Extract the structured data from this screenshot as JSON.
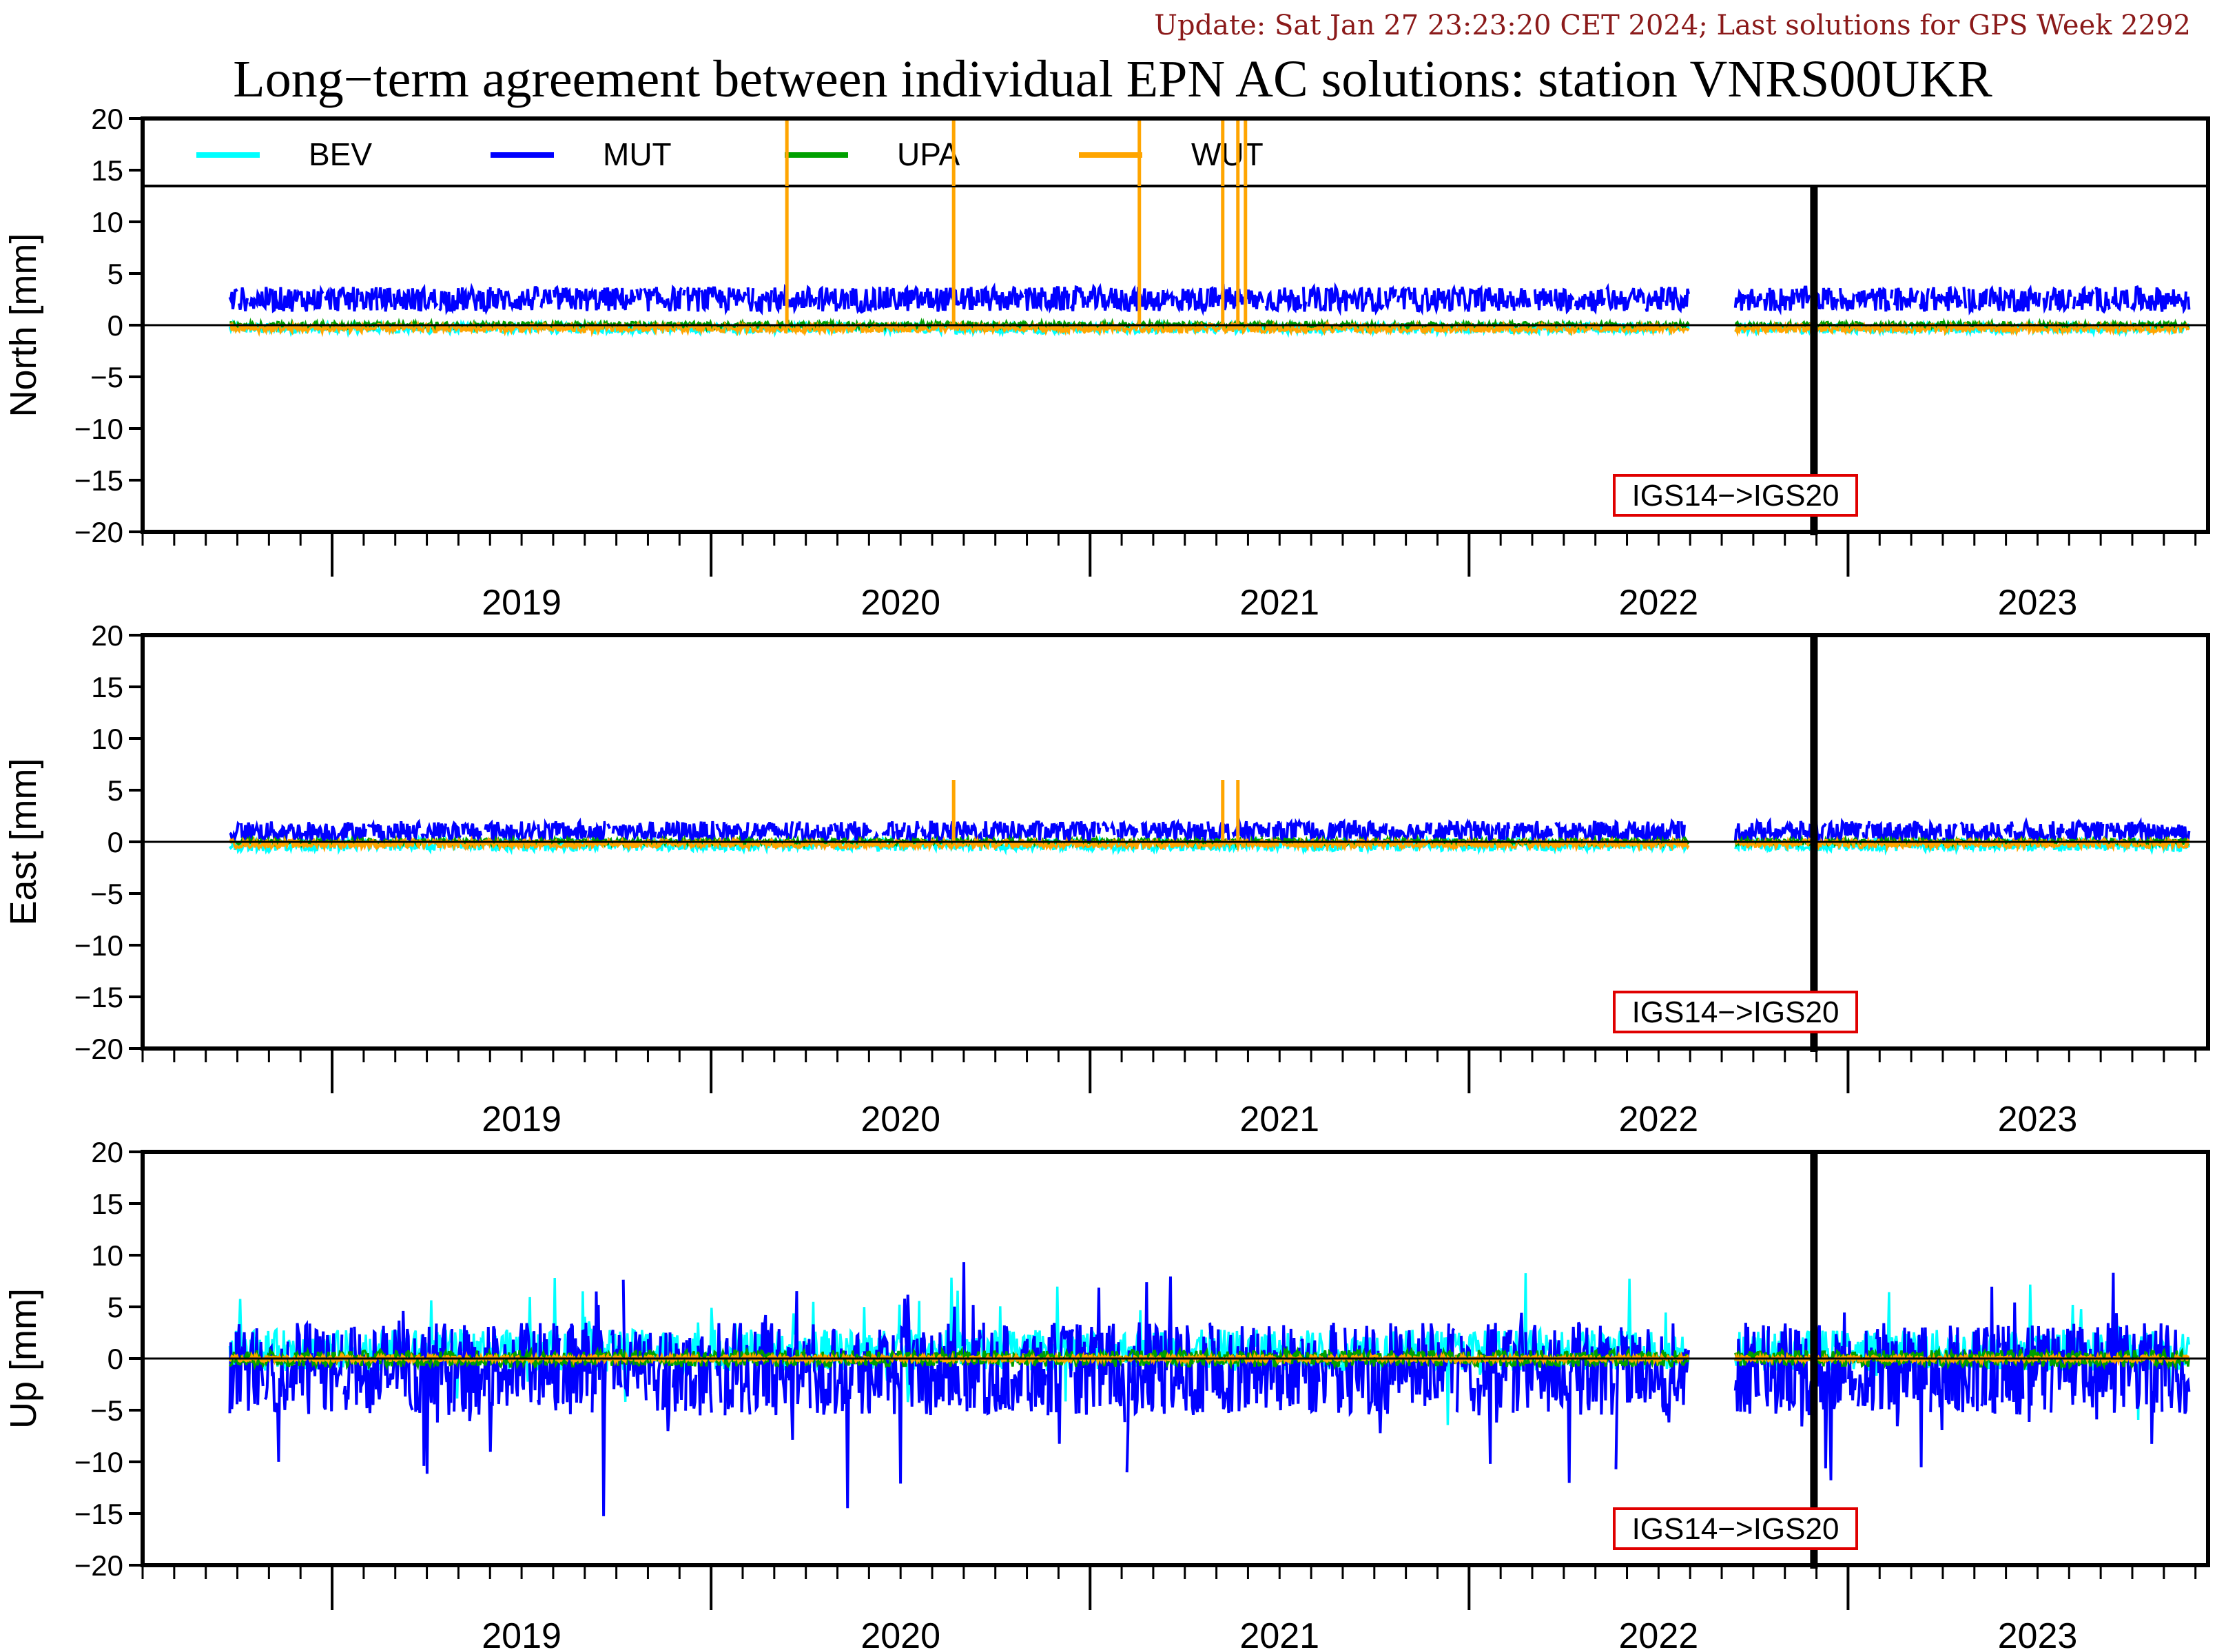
{
  "update_text": "Update: Sat Jan 27 23:23:20 CET 2024; Last solutions for GPS Week 2292",
  "title": "Long−term agreement between individual EPN AC solutions: station VNRS00UKR",
  "legend": [
    {
      "name": "BEV",
      "color": "#00ffff"
    },
    {
      "name": "MUT",
      "color": "#0000ff"
    },
    {
      "name": "UPA",
      "color": "#00a000"
    },
    {
      "name": "WUT",
      "color": "#ffa500"
    }
  ],
  "annotation": "IGS14−>IGS20",
  "chart_data": [
    {
      "type": "line",
      "ylabel": "North [mm]",
      "ylim": [
        -20,
        20
      ],
      "yticks": [
        "20",
        "15",
        "10",
        "5",
        "0",
        "−5",
        "−10",
        "−15",
        "−20"
      ],
      "xlim": [
        2018.5,
        2023.95
      ],
      "year_labels": [
        "2019",
        "2020",
        "2021",
        "2022",
        "2023"
      ],
      "reference_frame_change": 2022.91,
      "series": [
        {
          "name": "MUT",
          "level": 2.5,
          "spread": 1.2
        },
        {
          "name": "BEV",
          "level": -0.3,
          "spread": 0.5
        },
        {
          "name": "UPA",
          "level": 0.0,
          "spread": 0.3
        },
        {
          "name": "WUT",
          "level": -0.3,
          "spread": 0.4,
          "spikes": [
            2020.2,
            2020.64,
            2021.13,
            2021.35,
            2021.39,
            2021.41
          ]
        }
      ],
      "legend_box": true
    },
    {
      "type": "line",
      "ylabel": "East [mm]",
      "ylim": [
        -20,
        20
      ],
      "yticks": [
        "20",
        "15",
        "10",
        "5",
        "0",
        "−5",
        "−10",
        "−15",
        "−20"
      ],
      "xlim": [
        2018.5,
        2023.95
      ],
      "year_labels": [
        "2019",
        "2020",
        "2021",
        "2022",
        "2023"
      ],
      "reference_frame_change": 2022.91,
      "series": [
        {
          "name": "MUT",
          "level": 1.0,
          "spread": 1.0
        },
        {
          "name": "BEV",
          "level": -0.3,
          "spread": 0.6
        },
        {
          "name": "UPA",
          "level": 0.0,
          "spread": 0.3
        },
        {
          "name": "WUT",
          "level": -0.2,
          "spread": 0.4,
          "spikes": [
            2020.64,
            2021.35,
            2021.39
          ]
        }
      ],
      "legend_box": false
    },
    {
      "type": "line",
      "ylabel": "Up [mm]",
      "ylim": [
        -20,
        20
      ],
      "yticks": [
        "20",
        "15",
        "10",
        "5",
        "0",
        "−5",
        "−10",
        "−15",
        "−20"
      ],
      "xlim": [
        2018.5,
        2023.95
      ],
      "year_labels": [
        "2019",
        "2020",
        "2021",
        "2022",
        "2023"
      ],
      "reference_frame_change": 2022.91,
      "series": [
        {
          "name": "MUT",
          "level": -1.0,
          "spread": 4.5
        },
        {
          "name": "BEV",
          "level": 0.8,
          "spread": 2.0
        },
        {
          "name": "UPA",
          "level": 0.0,
          "spread": 0.8
        },
        {
          "name": "WUT",
          "level": 0.0,
          "spread": 0.3
        }
      ],
      "legend_box": false
    }
  ]
}
